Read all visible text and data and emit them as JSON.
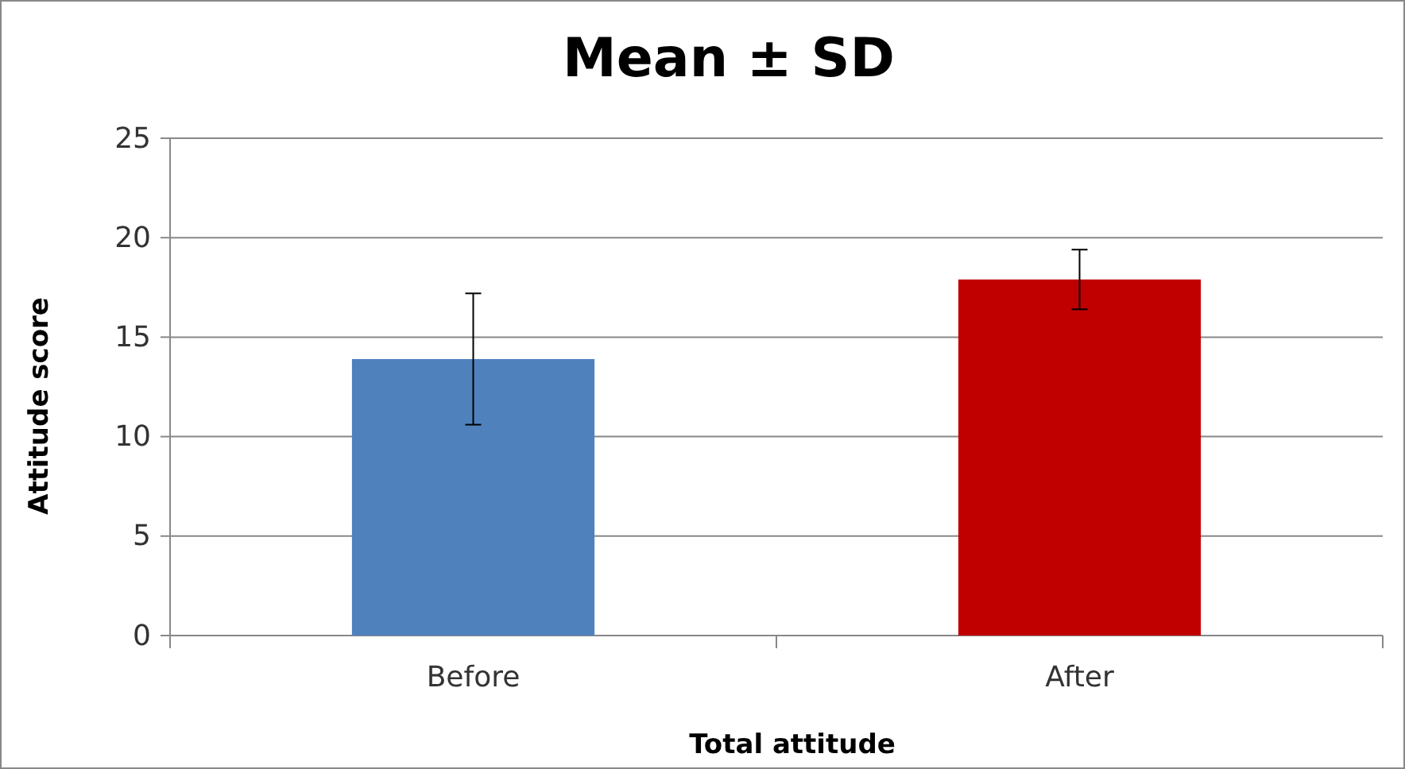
{
  "chart_data": {
    "type": "bar",
    "title": "Mean ± SD",
    "xlabel": "Total attitude",
    "ylabel": "Attitude score",
    "categories": [
      "Before",
      "After"
    ],
    "values": [
      13.9,
      17.9
    ],
    "colors": [
      "#4f81bd",
      "#c00000"
    ],
    "errors": [
      3.3,
      1.5
    ],
    "ylim": [
      0,
      25
    ],
    "yticks": [
      0,
      5,
      10,
      15,
      20,
      25
    ],
    "grid": "y"
  }
}
